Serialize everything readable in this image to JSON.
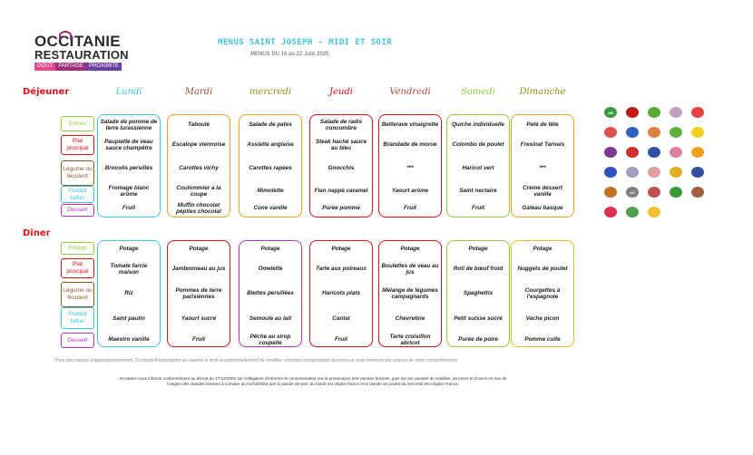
{
  "logo": {
    "line1": "OCCITANIE",
    "line2": "RESTAURATION",
    "tags": [
      "GOÛT",
      "PARTAGE",
      "PROXIMITÉ"
    ],
    "tag_colors": [
      "#e34a8c",
      "#9b2f7a",
      "#6a3fa0"
    ]
  },
  "header": {
    "title": "MENUS SAINT JOSEPH - MIDI ET SOIR",
    "subtitle": "MENUS DU 16 au 22 Juin 2025"
  },
  "sections": {
    "lunch": "Déjeuner",
    "dinner": "Dîner"
  },
  "days": [
    {
      "name": "Lundi",
      "color": "#3ec4e0"
    },
    {
      "name": "Mardi",
      "color": "#b04a3c"
    },
    {
      "name": "mercredi",
      "color": "#9a8a10"
    },
    {
      "name": "Jeudi",
      "color": "#e0101a"
    },
    {
      "name": "Vendredi",
      "color": "#b04a3c"
    },
    {
      "name": "Samedi",
      "color": "#8ccf3c"
    },
    {
      "name": "Dimanche",
      "color": "#9a8a10"
    }
  ],
  "lunch_categories": [
    {
      "label": "Entrée",
      "color": "#8ccf3c"
    },
    {
      "label": "Plat principal",
      "color": "#e0101a"
    },
    {
      "label": "Légume ou féculent",
      "color": "#8a5a2a"
    },
    {
      "label": "Produit laitier",
      "color": "#3ec4e0"
    },
    {
      "label": "Dessert",
      "color": "#c030c0"
    }
  ],
  "dinner_categories": [
    {
      "label": "Potage",
      "color": "#8ccf3c"
    },
    {
      "label": "Plat principal",
      "color": "#e0101a"
    },
    {
      "label": "Légume ou féculent",
      "color": "#8a5a2a"
    },
    {
      "label": "Produit laitier",
      "color": "#3ec4e0"
    },
    {
      "label": "Dessert",
      "color": "#c030c0"
    }
  ],
  "lunch_border_colors": [
    "#3ec4e0",
    "#f0a020",
    "#f0a020",
    "#e0101a",
    "#e0101a",
    "#8ccf3c",
    "#f0a020"
  ],
  "dinner_border_colors": [
    "#3ec4e0",
    "#e0101a",
    "#c030c0",
    "#e0101a",
    "#e0101a",
    "#8ccf3c",
    "#f0c020"
  ],
  "lunch": [
    [
      "Salade de pomme de terre lurassienne",
      "Paupiette de veau sauce champêtre",
      "Brocolis persillés",
      "Fromage blanc arôme",
      "Fruit"
    ],
    [
      "Taboulé",
      "Escalope viennoise",
      "Carottes vichy",
      "Coulommier a la coupe",
      "Muffin chocolat pépites chocolat"
    ],
    [
      "Salade de pates",
      "Assiette anglaise",
      "Carottes rapées",
      "Mimolette",
      "Cone vanille"
    ],
    [
      "Salade de radis concombre",
      "Steak haché sauce au bleu",
      "Gnocchis",
      "Flan nappé caramel",
      "Purée pomme"
    ],
    [
      "Betterave vinaigrette",
      "Brandade de morue",
      "***",
      "Yaourt arôme",
      "Fruit"
    ],
    [
      "Quiche individuelle",
      "Colombo de poulet",
      "Haricot vert",
      "Saint nectaire",
      "Fruit"
    ],
    [
      "Paté de tête",
      "Fresinat Tarnais",
      "***",
      "Crème dessert vanille",
      "Gateau basque"
    ]
  ],
  "dinner": [
    [
      "Potage",
      "Tomate farcie maison",
      "Riz",
      "Saint paulin",
      "Maestro vanille"
    ],
    [
      "Potage",
      "Jambonneau au jus",
      "Pommes de terre parisiennes",
      "Yaourt sucré",
      "Fruit"
    ],
    [
      "Potage",
      "Omelette",
      "Blettes persillées",
      "Semoule au lait",
      "Pêche au sirop coupelle"
    ],
    [
      "Potage",
      "Tarte aux poireaux",
      "Haricots plats",
      "Cantal",
      "Fruit"
    ],
    [
      "Potage",
      "Boulettes de veau au jus",
      "Mélange de légumes campagnards",
      "Chevretine",
      "Tarte croisillon abricot"
    ],
    [
      "Potage",
      "Roti de bœuf froid",
      "Spaghettis",
      "Petit suisse sucré",
      "Purée de poire"
    ],
    [
      "Potage",
      "Nuggets de poulet",
      "Courgettes à l'espagnole",
      "Vache picon",
      "Pomme cuite"
    ]
  ],
  "notes": {
    "supply": "Pour des raisons d'approvisionnement, Occitanie Restauration se réserve le droit exceptionnellement de modifier certaines composantes du menu et vous remercie par avance de votre compréhension.",
    "origin": "Occitanie vous informe conformément au décret du 17/12/2002 sur l'obligation d'informer le consommateur sur la provenance des viandes bovines, puis sur les viandes de volailles, de porcs et d'ovins en sus de l'origine des viandes bovines à compter du 01/03/2022 que la viande de porc du mardi est origine france et la viande de poulet du mercredi est origine France."
  },
  "label_icons": [
    {
      "icon": "bio-icon",
      "color": "#3a9a3a",
      "text": "AB"
    },
    {
      "icon": "label-rouge-icon",
      "color": "#c01818",
      "text": ""
    },
    {
      "icon": "eu-organic-icon",
      "color": "#5aaa3a",
      "text": ""
    },
    {
      "icon": "chef-icon",
      "color": "#c0a0c0",
      "text": ""
    },
    {
      "icon": "aop-icon",
      "color": "#e84040",
      "text": ""
    },
    {
      "icon": "egg-icon",
      "color": "#e05050",
      "text": ""
    },
    {
      "icon": "fish-icon",
      "color": "#3060c0",
      "text": ""
    },
    {
      "icon": "local-icon",
      "color": "#e08040",
      "text": ""
    },
    {
      "icon": "leaf-icon",
      "color": "#60b040",
      "text": ""
    },
    {
      "icon": "lemon-icon",
      "color": "#f0d020",
      "text": ""
    },
    {
      "icon": "eggplant-icon",
      "color": "#7a3a90",
      "text": ""
    },
    {
      "icon": "pepper-icon",
      "color": "#d03030",
      "text": ""
    },
    {
      "icon": "star-icon",
      "color": "#3050a0",
      "text": ""
    },
    {
      "icon": "cake-icon",
      "color": "#e080a0",
      "text": ""
    },
    {
      "icon": "fruit-icon",
      "color": "#f0a020",
      "text": ""
    },
    {
      "icon": "france-flag-icon",
      "color": "#3050c0",
      "text": ""
    },
    {
      "icon": "cup-icon",
      "color": "#a0a0c0",
      "text": ""
    },
    {
      "icon": "pig-icon",
      "color": "#e0a0a0",
      "text": ""
    },
    {
      "icon": "igp-icon",
      "color": "#e0b020",
      "text": ""
    },
    {
      "icon": "quality-icon",
      "color": "#3050a0",
      "text": ""
    },
    {
      "icon": "burger-icon",
      "color": "#c07020",
      "text": ""
    },
    {
      "icon": "ac-icon",
      "color": "#808080",
      "text": "AC"
    },
    {
      "icon": "home-icon",
      "color": "#c05050",
      "text": ""
    },
    {
      "icon": "green-label-icon",
      "color": "#3a9a3a",
      "text": ""
    },
    {
      "icon": "bowl-icon",
      "color": "#a06040",
      "text": ""
    },
    {
      "icon": "heart-icon",
      "color": "#e03050",
      "text": ""
    },
    {
      "icon": "herb-icon",
      "color": "#50a050",
      "text": ""
    },
    {
      "icon": "candy-icon",
      "color": "#f0c030",
      "text": ""
    }
  ]
}
